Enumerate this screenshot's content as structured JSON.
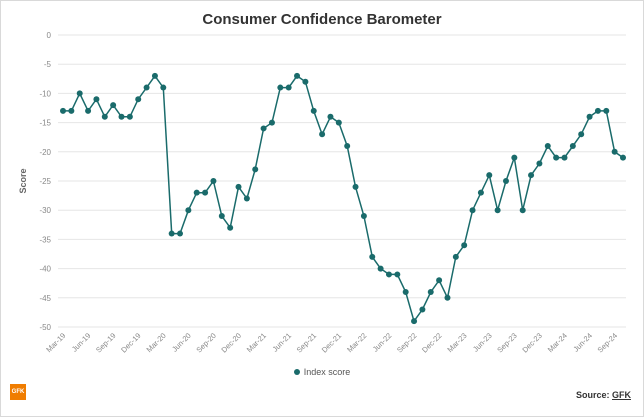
{
  "chart_data": {
    "type": "line",
    "title": "Consumer Confidence Barometer",
    "ylabel": "Score",
    "xlabel": "",
    "ylim": [
      -50,
      0
    ],
    "yticks": [
      0,
      -5,
      -10,
      -15,
      -20,
      -25,
      -30,
      -35,
      -40,
      -45,
      -50
    ],
    "grid": true,
    "legend": "bottom",
    "series": [
      {
        "name": "Index score",
        "color": "#1a6b6b",
        "values": [
          -13,
          -13,
          -10,
          -13,
          -11,
          -14,
          -12,
          -14,
          -14,
          -11,
          -9,
          -7,
          -9,
          -34,
          -34,
          -30,
          -27,
          -27,
          -25,
          -31,
          -33,
          -26,
          -28,
          -23,
          -16,
          -15,
          -9,
          -9,
          -7,
          -8,
          -13,
          -17,
          -14,
          -15,
          -19,
          -26,
          -31,
          -38,
          -40,
          -41,
          -41,
          -44,
          -49,
          -47,
          -44,
          -42,
          -45,
          -38,
          -36,
          -30,
          -27,
          -24,
          -30,
          -25,
          -21,
          -30,
          -24,
          -22,
          -19,
          -21,
          -21,
          -19,
          -17,
          -14,
          -13,
          -13,
          -20,
          -21
        ]
      }
    ],
    "x": [
      "Mar-19",
      "Apr-19",
      "May-19",
      "Jun-19",
      "Jul-19",
      "Aug-19",
      "Sep-19",
      "Oct-19",
      "Nov-19",
      "Dec-19",
      "Jan-20",
      "Feb-20",
      "Mar-20",
      "Apr-20",
      "May-20",
      "Jun-20",
      "Jul-20",
      "Aug-20",
      "Sep-20",
      "Oct-20",
      "Nov-20",
      "Dec-20",
      "Jan-21",
      "Feb-21",
      "Mar-21",
      "Apr-21",
      "May-21",
      "Jun-21",
      "Jul-21",
      "Aug-21",
      "Sep-21",
      "Oct-21",
      "Nov-21",
      "Dec-21",
      "Jan-22",
      "Feb-22",
      "Mar-22",
      "Apr-22",
      "May-22",
      "Jun-22",
      "Jul-22",
      "Aug-22",
      "Sep-22",
      "Oct-22",
      "Nov-22",
      "Dec-22",
      "Jan-23",
      "Feb-23",
      "Mar-23",
      "Apr-23",
      "May-23",
      "Jun-23",
      "Jul-23",
      "Aug-23",
      "Sep-23",
      "Oct-23",
      "Nov-23",
      "Dec-23",
      "Jan-24",
      "Feb-24",
      "Mar-24",
      "Apr-24",
      "May-24",
      "Jun-24",
      "Jul-24",
      "Aug-24",
      "Sep-24",
      "Oct-24"
    ],
    "xtick_labels": [
      "Mar-19",
      "Jun-19",
      "Sep-19",
      "Dec-19",
      "Mar-20",
      "Jun-20",
      "Sep-20",
      "Dec-20",
      "Mar-21",
      "Jun-21",
      "Sep-21",
      "Dec-21",
      "Mar-22",
      "Jun-22",
      "Sep-22",
      "Dec-22",
      "Mar-23",
      "Jun-23",
      "Sep-23",
      "Dec-23",
      "Mar-24",
      "Jun-24",
      "Sep-24"
    ]
  },
  "footer": {
    "logo_text": "GFK",
    "source_label": "Source:",
    "source_link": "GFK"
  }
}
